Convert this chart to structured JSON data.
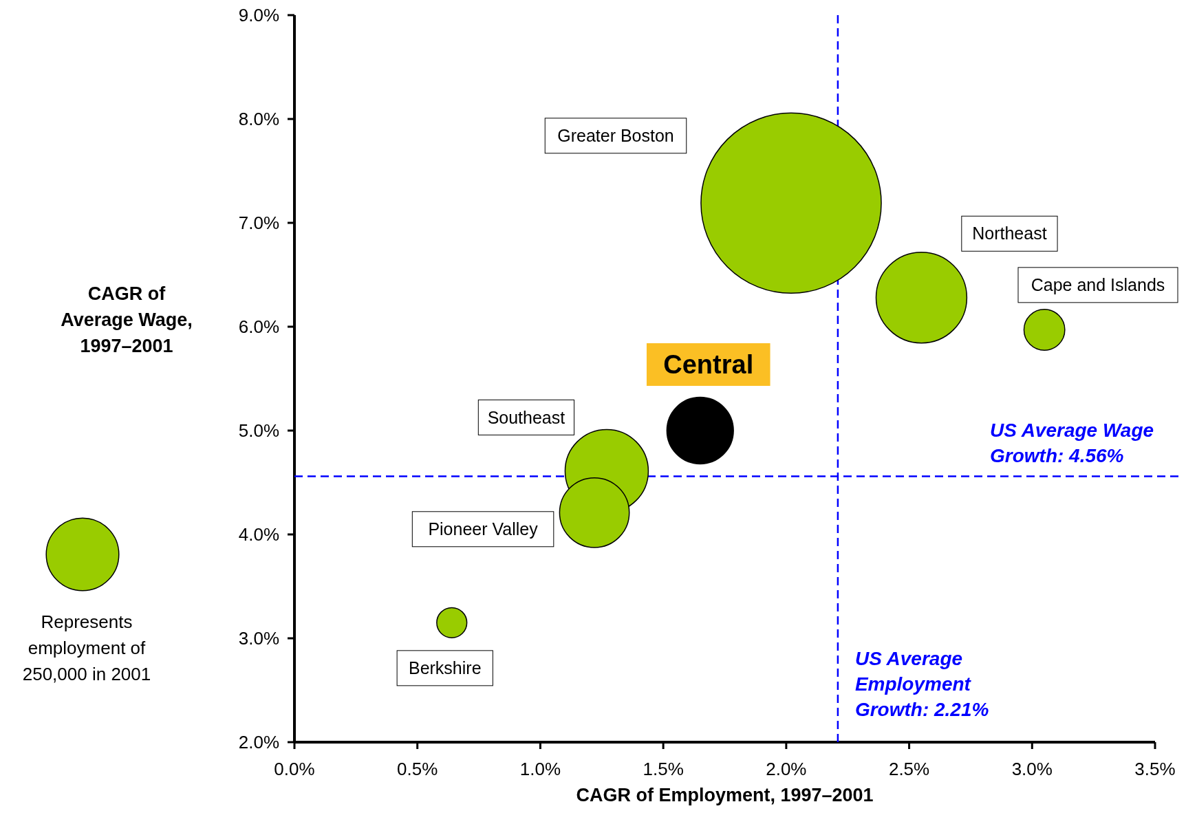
{
  "chart_data": {
    "type": "bubble",
    "xlabel": "CAGR of Employment, 1997–2001",
    "ylabel": "CAGR of Average Wage, 1997–2001",
    "xlim": [
      0,
      3.5
    ],
    "ylim": [
      2,
      9
    ],
    "xticks": [
      {
        "value": 0,
        "label": "0.0%"
      },
      {
        "value": 0.5,
        "label": "0.5%"
      },
      {
        "value": 1,
        "label": "1.0%"
      },
      {
        "value": 1.5,
        "label": "1.5%"
      },
      {
        "value": 2,
        "label": "2.0%"
      },
      {
        "value": 2.5,
        "label": "2.5%"
      },
      {
        "value": 3,
        "label": "3.0%"
      },
      {
        "value": 3.5,
        "label": "3.5%"
      }
    ],
    "yticks": [
      {
        "value": 2,
        "label": "2.0%"
      },
      {
        "value": 3,
        "label": "3.0%"
      },
      {
        "value": 4,
        "label": "4.0%"
      },
      {
        "value": 5,
        "label": "5.0%"
      },
      {
        "value": 6,
        "label": "6.0%"
      },
      {
        "value": 7,
        "label": "7.0%"
      },
      {
        "value": 8,
        "label": "8.0%"
      },
      {
        "value": 9,
        "label": "9.0%"
      }
    ],
    "size_legend": [
      {
        "value": 250000,
        "label": "Represents employment of 250,000 in 2001"
      }
    ],
    "marker": "circle",
    "series": [
      {
        "name": "Greater Boston",
        "color": "#99cc00",
        "x": [
          2.02
        ],
        "values": [
          7.19
        ],
        "sizes": [
          1540000
        ]
      },
      {
        "name": "Northeast",
        "color": "#99cc00",
        "x": [
          2.55
        ],
        "values": [
          6.28
        ],
        "sizes": [
          390000
        ]
      },
      {
        "name": "Cape and Islands",
        "color": "#99cc00",
        "x": [
          3.05
        ],
        "values": [
          5.97
        ],
        "sizes": [
          79000
        ]
      },
      {
        "name": "Central",
        "color": "#000000",
        "x": [
          1.65
        ],
        "values": [
          5.0
        ],
        "sizes": [
          210000
        ]
      },
      {
        "name": "Southeast",
        "color": "#99cc00",
        "x": [
          1.27
        ],
        "values": [
          4.61
        ],
        "sizes": [
          328000
        ]
      },
      {
        "name": "Pioneer Valley",
        "color": "#99cc00",
        "x": [
          1.22
        ],
        "values": [
          4.21
        ],
        "sizes": [
          230000
        ]
      },
      {
        "name": "Berkshire",
        "color": "#99cc00",
        "x": [
          0.64
        ],
        "values": [
          3.15
        ],
        "sizes": [
          43000
        ]
      }
    ],
    "ref_lines": [
      {
        "axis": "x",
        "value": 2.21,
        "label": "US Average Employment Growth: 2.21%",
        "color": "#0000ff",
        "line_style": "dashed"
      },
      {
        "axis": "y",
        "value": 4.56,
        "label": "US Average Wage Growth: 4.56%",
        "color": "#0000ff",
        "line_style": "dashed"
      }
    ]
  }
}
